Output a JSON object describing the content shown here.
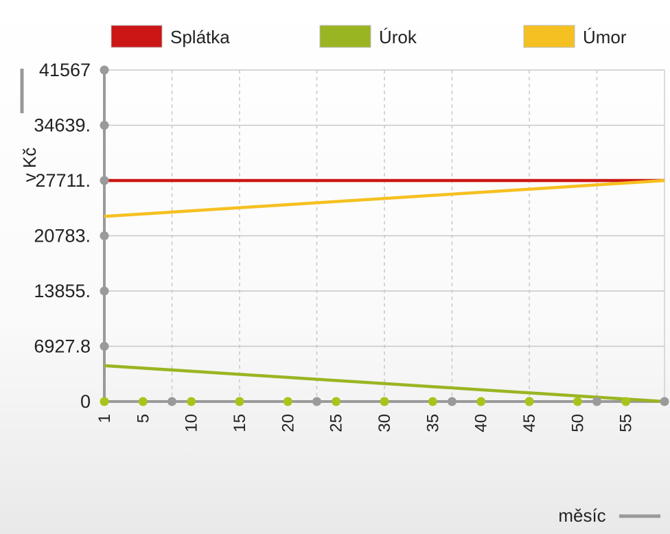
{
  "chart_data": {
    "type": "line",
    "xlabel": "měsíc",
    "ylabel": "v Kč",
    "xlim": [
      1,
      59
    ],
    "ylim": [
      0,
      41567
    ],
    "x_ticks": [
      1,
      5,
      10,
      15,
      20,
      25,
      30,
      35,
      40,
      45,
      50,
      55
    ],
    "y_ticks": [
      "0",
      "6927.8",
      "13855.",
      "20783.",
      "27711.",
      "34639.",
      "41567"
    ],
    "y_tick_values": [
      0,
      6927.8,
      13855,
      20783,
      27711,
      34639,
      41567
    ],
    "legend_position": "top",
    "grid": true,
    "series": [
      {
        "name": "Splátka",
        "color": "#cc1515",
        "x": [
          1,
          59
        ],
        "values": [
          27711,
          27711
        ]
      },
      {
        "name": "Úrok",
        "color": "#9ab522",
        "x": [
          1,
          59
        ],
        "values": [
          4500,
          0
        ]
      },
      {
        "name": "Úmor",
        "color": "#f5c021",
        "x": [
          1,
          59
        ],
        "values": [
          23211,
          27711
        ]
      }
    ]
  }
}
